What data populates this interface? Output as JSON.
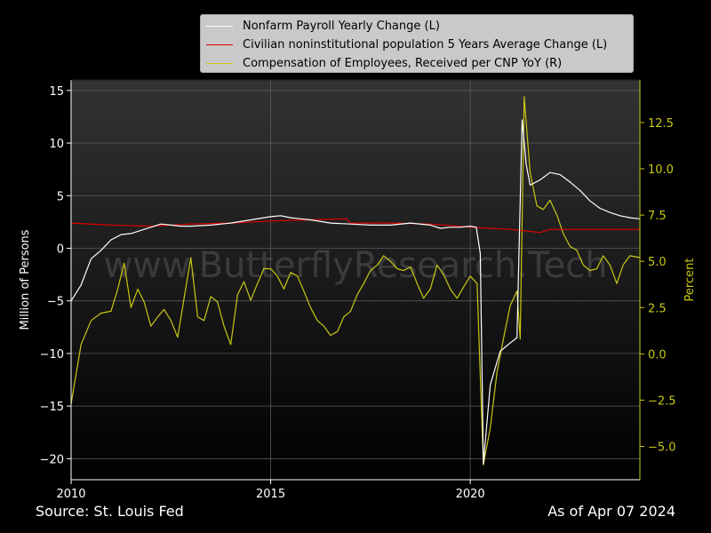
{
  "footer": {
    "source": "Source: St. Louis Fed",
    "asof": "As of Apr 07 2024"
  },
  "watermark": "www.ButterflyResearch.Tech",
  "colors": {
    "payroll": "#ffffff",
    "population": "#e00000",
    "compensation": "#c8c814",
    "right_axis": "#c8c814"
  },
  "chart_data": {
    "type": "line",
    "xlabel": "",
    "ylabel_left": "Million of Persons",
    "ylabel_right": "Percent",
    "xlim": [
      2010.0,
      2024.25
    ],
    "ylim_left": [
      -22,
      16
    ],
    "ylim_right": [
      -6.8,
      14.8
    ],
    "x_ticks": [
      2010,
      2015,
      2020
    ],
    "y_ticks_left": [
      -20,
      -15,
      -10,
      -5,
      0,
      5,
      10,
      15
    ],
    "y_ticks_right": [
      -5.0,
      -2.5,
      0.0,
      2.5,
      5.0,
      7.5,
      10.0,
      12.5
    ],
    "grid": true,
    "legend_position": "top",
    "series": [
      {
        "name": "Nonfarm Payroll Yearly Change (L)",
        "axis": "left",
        "points": [
          [
            2010.0,
            -5.0
          ],
          [
            2010.25,
            -3.5
          ],
          [
            2010.5,
            -1.0
          ],
          [
            2010.75,
            -0.2
          ],
          [
            2011.0,
            0.8
          ],
          [
            2011.25,
            1.3
          ],
          [
            2011.5,
            1.4
          ],
          [
            2011.75,
            1.7
          ],
          [
            2012.0,
            2.0
          ],
          [
            2012.25,
            2.3
          ],
          [
            2012.5,
            2.2
          ],
          [
            2012.75,
            2.1
          ],
          [
            2013.0,
            2.1
          ],
          [
            2013.5,
            2.2
          ],
          [
            2014.0,
            2.4
          ],
          [
            2014.5,
            2.7
          ],
          [
            2015.0,
            3.0
          ],
          [
            2015.25,
            3.1
          ],
          [
            2015.5,
            2.9
          ],
          [
            2015.75,
            2.8
          ],
          [
            2016.0,
            2.7
          ],
          [
            2016.5,
            2.4
          ],
          [
            2017.0,
            2.3
          ],
          [
            2017.5,
            2.2
          ],
          [
            2018.0,
            2.2
          ],
          [
            2018.5,
            2.4
          ],
          [
            2019.0,
            2.2
          ],
          [
            2019.25,
            1.9
          ],
          [
            2019.5,
            2.0
          ],
          [
            2019.75,
            2.0
          ],
          [
            2020.0,
            2.1
          ],
          [
            2020.15,
            2.0
          ],
          [
            2020.25,
            -0.5
          ],
          [
            2020.33,
            -20.5
          ],
          [
            2020.5,
            -13.0
          ],
          [
            2020.75,
            -9.8
          ],
          [
            2021.0,
            -9.0
          ],
          [
            2021.17,
            -8.5
          ],
          [
            2021.3,
            12.2
          ],
          [
            2021.4,
            8.0
          ],
          [
            2021.5,
            6.0
          ],
          [
            2021.75,
            6.5
          ],
          [
            2022.0,
            7.2
          ],
          [
            2022.25,
            7.0
          ],
          [
            2022.5,
            6.3
          ],
          [
            2022.75,
            5.5
          ],
          [
            2023.0,
            4.5
          ],
          [
            2023.25,
            3.8
          ],
          [
            2023.5,
            3.4
          ],
          [
            2023.75,
            3.1
          ],
          [
            2024.0,
            2.9
          ],
          [
            2024.25,
            2.8
          ]
        ]
      },
      {
        "name": "Civilian noninstitutional population 5 Years Average Change (L)",
        "axis": "left",
        "points": [
          [
            2010.0,
            2.4
          ],
          [
            2011.0,
            2.2
          ],
          [
            2012.0,
            2.1
          ],
          [
            2013.0,
            2.3
          ],
          [
            2014.0,
            2.4
          ],
          [
            2015.0,
            2.6
          ],
          [
            2016.0,
            2.7
          ],
          [
            2016.9,
            2.8
          ],
          [
            2017.0,
            2.4
          ],
          [
            2018.0,
            2.4
          ],
          [
            2019.0,
            2.3
          ],
          [
            2020.0,
            2.0
          ],
          [
            2020.5,
            1.9
          ],
          [
            2021.0,
            1.8
          ],
          [
            2021.75,
            1.5
          ],
          [
            2022.0,
            1.8
          ],
          [
            2023.0,
            1.8
          ],
          [
            2024.25,
            1.8
          ]
        ]
      },
      {
        "name": "Compensation of Employees, Received per CNP YoY (R)",
        "axis": "right",
        "points": [
          [
            2010.0,
            -2.7
          ],
          [
            2010.25,
            0.5
          ],
          [
            2010.5,
            1.8
          ],
          [
            2010.75,
            2.2
          ],
          [
            2011.0,
            2.3
          ],
          [
            2011.17,
            3.5
          ],
          [
            2011.33,
            4.9
          ],
          [
            2011.5,
            2.5
          ],
          [
            2011.67,
            3.5
          ],
          [
            2011.83,
            2.8
          ],
          [
            2012.0,
            1.5
          ],
          [
            2012.17,
            2.0
          ],
          [
            2012.33,
            2.4
          ],
          [
            2012.5,
            1.8
          ],
          [
            2012.67,
            0.9
          ],
          [
            2012.83,
            3.0
          ],
          [
            2013.0,
            5.2
          ],
          [
            2013.17,
            2.0
          ],
          [
            2013.33,
            1.8
          ],
          [
            2013.5,
            3.1
          ],
          [
            2013.67,
            2.8
          ],
          [
            2013.83,
            1.5
          ],
          [
            2014.0,
            0.5
          ],
          [
            2014.17,
            3.2
          ],
          [
            2014.33,
            3.9
          ],
          [
            2014.5,
            2.9
          ],
          [
            2014.67,
            3.8
          ],
          [
            2014.83,
            4.6
          ],
          [
            2015.0,
            4.6
          ],
          [
            2015.17,
            4.2
          ],
          [
            2015.33,
            3.5
          ],
          [
            2015.5,
            4.4
          ],
          [
            2015.67,
            4.2
          ],
          [
            2015.83,
            3.4
          ],
          [
            2016.0,
            2.5
          ],
          [
            2016.17,
            1.8
          ],
          [
            2016.33,
            1.5
          ],
          [
            2016.5,
            1.0
          ],
          [
            2016.67,
            1.2
          ],
          [
            2016.83,
            2.0
          ],
          [
            2017.0,
            2.3
          ],
          [
            2017.17,
            3.2
          ],
          [
            2017.33,
            3.8
          ],
          [
            2017.5,
            4.5
          ],
          [
            2017.67,
            4.8
          ],
          [
            2017.83,
            5.3
          ],
          [
            2018.0,
            5.0
          ],
          [
            2018.17,
            4.6
          ],
          [
            2018.33,
            4.5
          ],
          [
            2018.5,
            4.7
          ],
          [
            2018.67,
            3.8
          ],
          [
            2018.83,
            3.0
          ],
          [
            2019.0,
            3.5
          ],
          [
            2019.17,
            4.8
          ],
          [
            2019.33,
            4.3
          ],
          [
            2019.5,
            3.5
          ],
          [
            2019.67,
            3.0
          ],
          [
            2019.83,
            3.6
          ],
          [
            2020.0,
            4.2
          ],
          [
            2020.17,
            3.8
          ],
          [
            2020.33,
            -6.0
          ],
          [
            2020.5,
            -4.0
          ],
          [
            2020.67,
            -1.0
          ],
          [
            2020.83,
            0.8
          ],
          [
            2021.0,
            2.6
          ],
          [
            2021.17,
            3.4
          ],
          [
            2021.25,
            0.8
          ],
          [
            2021.35,
            13.9
          ],
          [
            2021.5,
            9.8
          ],
          [
            2021.67,
            8.0
          ],
          [
            2021.83,
            7.8
          ],
          [
            2022.0,
            8.3
          ],
          [
            2022.17,
            7.5
          ],
          [
            2022.33,
            6.5
          ],
          [
            2022.5,
            5.8
          ],
          [
            2022.67,
            5.6
          ],
          [
            2022.83,
            4.8
          ],
          [
            2023.0,
            4.5
          ],
          [
            2023.17,
            4.6
          ],
          [
            2023.33,
            5.3
          ],
          [
            2023.5,
            4.8
          ],
          [
            2023.67,
            3.8
          ],
          [
            2023.83,
            4.8
          ],
          [
            2024.0,
            5.3
          ],
          [
            2024.25,
            5.2
          ]
        ]
      }
    ]
  }
}
